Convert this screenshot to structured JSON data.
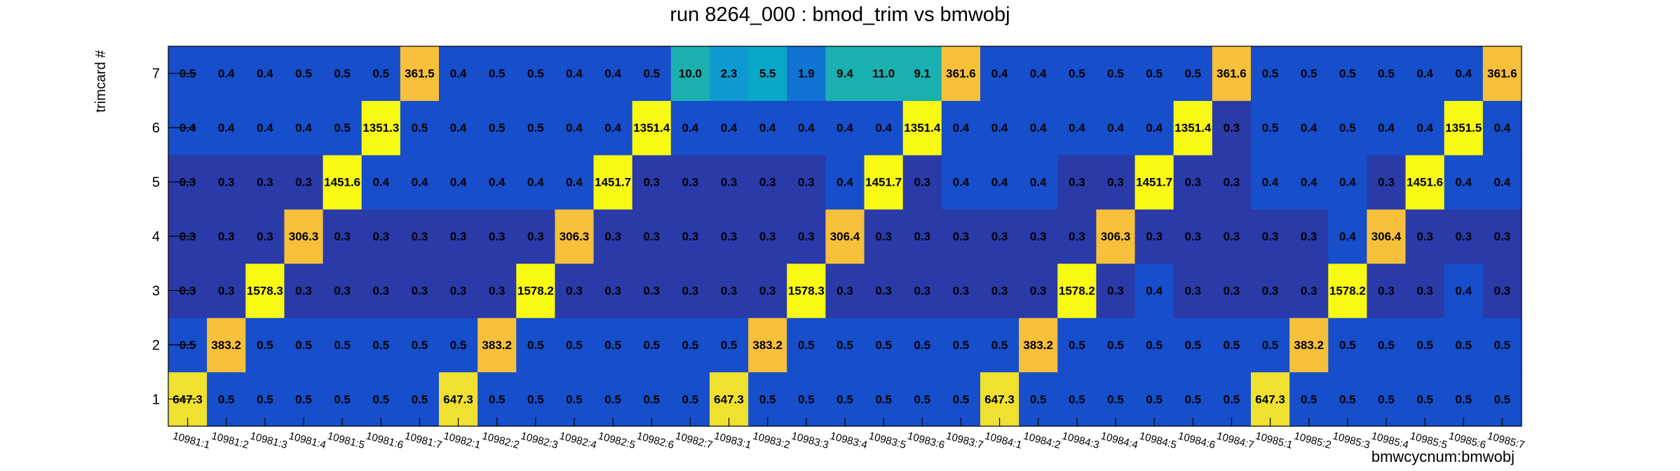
{
  "chart_data": {
    "type": "heatmap",
    "title": "run 8264_000 : bmod_trim vs bmwobj",
    "xlabel": "bmwcycnum:bmwobj",
    "ylabel": "trimcard #",
    "x_categories": [
      "10981:1",
      "10981:2",
      "10981:3",
      "10981:4",
      "10981:5",
      "10981:6",
      "10981:7",
      "10982:1",
      "10982:2",
      "10982:3",
      "10982:4",
      "10982:5",
      "10982:6",
      "10982:7",
      "10983:1",
      "10983:2",
      "10983:3",
      "10983:4",
      "10983:5",
      "10983:6",
      "10983:7",
      "10984:1",
      "10984:2",
      "10984:3",
      "10984:4",
      "10984:5",
      "10984:6",
      "10984:7",
      "10985:1",
      "10985:2",
      "10985:3",
      "10985:4",
      "10985:5",
      "10985:6",
      "10985:7"
    ],
    "y_categories": [
      "1",
      "2",
      "3",
      "4",
      "5",
      "6",
      "7"
    ],
    "values": [
      [
        "647.3",
        "0.5",
        "0.5",
        "0.5",
        "0.5",
        "0.5",
        "0.5",
        "647.3",
        "0.5",
        "0.5",
        "0.5",
        "0.5",
        "0.5",
        "0.5",
        "647.3",
        "0.5",
        "0.5",
        "0.5",
        "0.5",
        "0.5",
        "0.5",
        "647.3",
        "0.5",
        "0.5",
        "0.5",
        "0.5",
        "0.5",
        "0.5",
        "647.3",
        "0.5",
        "0.5",
        "0.5",
        "0.5",
        "0.5",
        "0.5"
      ],
      [
        "0.5",
        "383.2",
        "0.5",
        "0.5",
        "0.5",
        "0.5",
        "0.5",
        "0.5",
        "383.2",
        "0.5",
        "0.5",
        "0.5",
        "0.5",
        "0.5",
        "0.5",
        "383.2",
        "0.5",
        "0.5",
        "0.5",
        "0.5",
        "0.5",
        "0.5",
        "383.2",
        "0.5",
        "0.5",
        "0.5",
        "0.5",
        "0.5",
        "0.5",
        "383.2",
        "0.5",
        "0.5",
        "0.5",
        "0.5",
        "0.5"
      ],
      [
        "0.3",
        "0.3",
        "1578.3",
        "0.3",
        "0.3",
        "0.3",
        "0.3",
        "0.3",
        "0.3",
        "1578.2",
        "0.3",
        "0.3",
        "0.3",
        "0.3",
        "0.3",
        "0.3",
        "1578.3",
        "0.3",
        "0.3",
        "0.3",
        "0.3",
        "0.3",
        "0.3",
        "1578.2",
        "0.3",
        "0.4",
        "0.3",
        "0.3",
        "0.3",
        "0.3",
        "1578.2",
        "0.3",
        "0.3",
        "0.4",
        "0.3"
      ],
      [
        "0.3",
        "0.3",
        "0.3",
        "306.3",
        "0.3",
        "0.3",
        "0.3",
        "0.3",
        "0.3",
        "0.3",
        "306.3",
        "0.3",
        "0.3",
        "0.3",
        "0.3",
        "0.3",
        "0.3",
        "306.4",
        "0.3",
        "0.3",
        "0.3",
        "0.3",
        "0.3",
        "0.3",
        "306.3",
        "0.3",
        "0.3",
        "0.3",
        "0.3",
        "0.3",
        "0.4",
        "306.4",
        "0.3",
        "0.3",
        "0.3"
      ],
      [
        "0.3",
        "0.3",
        "0.3",
        "0.3",
        "1451.6",
        "0.4",
        "0.4",
        "0.4",
        "0.4",
        "0.4",
        "0.4",
        "1451.7",
        "0.3",
        "0.3",
        "0.3",
        "0.3",
        "0.3",
        "0.4",
        "1451.7",
        "0.3",
        "0.4",
        "0.4",
        "0.4",
        "0.3",
        "0.3",
        "1451.7",
        "0.3",
        "0.3",
        "0.4",
        "0.4",
        "0.4",
        "0.3",
        "1451.6",
        "0.4",
        "0.4"
      ],
      [
        "0.4",
        "0.4",
        "0.4",
        "0.4",
        "0.5",
        "1351.3",
        "0.5",
        "0.4",
        "0.5",
        "0.5",
        "0.4",
        "0.4",
        "1351.4",
        "0.4",
        "0.4",
        "0.4",
        "0.4",
        "0.4",
        "0.4",
        "1351.4",
        "0.4",
        "0.4",
        "0.4",
        "0.4",
        "0.4",
        "0.4",
        "1351.4",
        "0.3",
        "0.5",
        "0.4",
        "0.5",
        "0.4",
        "0.4",
        "1351.5",
        "0.4"
      ],
      [
        "0.5",
        "0.4",
        "0.4",
        "0.5",
        "0.5",
        "0.5",
        "361.5",
        "0.4",
        "0.5",
        "0.5",
        "0.4",
        "0.4",
        "0.5",
        "10.0",
        "2.3",
        "5.5",
        "1.9",
        "9.4",
        "11.0",
        "9.1",
        "361.6",
        "0.4",
        "0.4",
        "0.5",
        "0.5",
        "0.5",
        "0.5",
        "361.6",
        "0.5",
        "0.5",
        "0.5",
        "0.5",
        "0.4",
        "0.4",
        "361.6"
      ]
    ],
    "color_scale": [
      {
        "max": 0.35,
        "color": "#2a3aa8"
      },
      {
        "max": 0.6,
        "color": "#164ecb"
      },
      {
        "max": 2.1,
        "color": "#1173d4"
      },
      {
        "max": 3.0,
        "color": "#0d9ad0"
      },
      {
        "max": 6.0,
        "color": "#0aa8c8"
      },
      {
        "max": 12.0,
        "color": "#1bb0b0"
      },
      {
        "max": 400,
        "color": "#f6c03a"
      },
      {
        "max": 1000,
        "color": "#f0e030"
      },
      {
        "max": 100000,
        "color": "#f9fa14"
      }
    ],
    "grid": false
  }
}
